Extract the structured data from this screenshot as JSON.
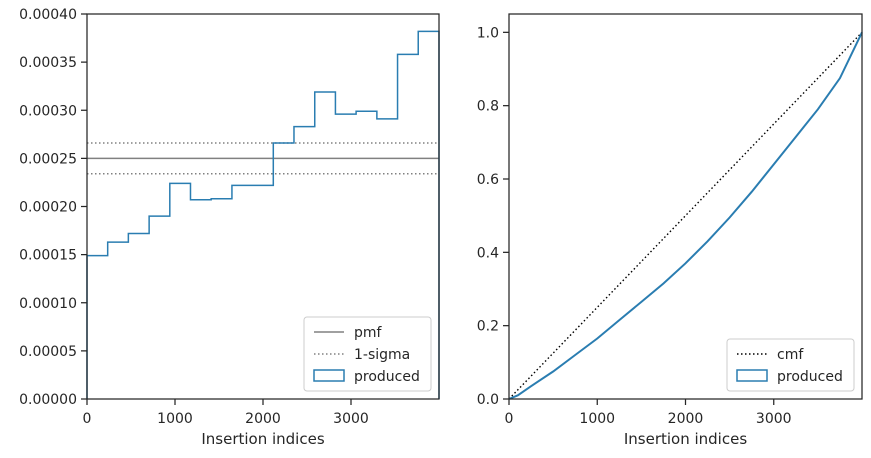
{
  "chart_data": [
    {
      "type": "histogram",
      "xlabel": "Insertion indices",
      "ylabel": "",
      "xlim": [
        0,
        4000
      ],
      "ylim": [
        0,
        0.0004
      ],
      "xticks": [
        0,
        1000,
        2000,
        3000
      ],
      "xtick_labels": [
        "0",
        "1000",
        "2000",
        "3000"
      ],
      "yticks": [
        0,
        5e-05,
        0.0001,
        0.00015,
        0.0002,
        0.00025,
        0.0003,
        0.00035,
        0.0004
      ],
      "ytick_labels": [
        "0.00000",
        "0.00005",
        "0.00010",
        "0.00015",
        "0.00020",
        "0.00025",
        "0.00030",
        "0.00035",
        "0.00040"
      ],
      "grid": false,
      "legend_position": "lower-right",
      "hlines": [
        {
          "name": "pmf",
          "y": 0.00025,
          "style": "solid",
          "color": "#808080"
        },
        {
          "name": "1-sigma",
          "y": 0.000266,
          "style": "dotted",
          "color": "#808080"
        },
        {
          "name": "1-sigma",
          "y": 0.000234,
          "style": "dotted",
          "color": "#808080"
        }
      ],
      "series": [
        {
          "name": "produced",
          "color": "#2a7db1",
          "bin_edges": [
            0,
            235,
            470,
            706,
            941,
            1176,
            1411,
            1647,
            1882,
            2117,
            2352,
            2588,
            2823,
            3058,
            3294,
            3529,
            3764,
            4000
          ],
          "values": [
            0.000149,
            0.000163,
            0.000172,
            0.00019,
            0.000224,
            0.000207,
            0.000208,
            0.000222,
            0.000222,
            0.000266,
            0.000283,
            0.000319,
            0.000296,
            0.000299,
            0.000291,
            0.000358,
            0.000382
          ]
        }
      ],
      "legend": [
        {
          "label": "pmf",
          "kind": "line-solid",
          "color": "#808080"
        },
        {
          "label": "1-sigma",
          "kind": "line-dotted",
          "color": "#808080"
        },
        {
          "label": "produced",
          "kind": "patch",
          "color": "#2a7db1"
        }
      ]
    },
    {
      "type": "line",
      "xlabel": "Insertion indices",
      "ylabel": "",
      "xlim": [
        0,
        4000
      ],
      "ylim": [
        0,
        1.05
      ],
      "xticks": [
        0,
        1000,
        2000,
        3000
      ],
      "xtick_labels": [
        "0",
        "1000",
        "2000",
        "3000"
      ],
      "yticks": [
        0,
        0.2,
        0.4,
        0.6,
        0.8,
        1.0
      ],
      "ytick_labels": [
        "0.0",
        "0.2",
        "0.4",
        "0.6",
        "0.8",
        "1.0"
      ],
      "grid": false,
      "legend_position": "lower-right",
      "series": [
        {
          "name": "cmf",
          "style": "dotted",
          "color": "#000000",
          "x": [
            0,
            4000
          ],
          "y": [
            0,
            1.0
          ]
        },
        {
          "name": "produced",
          "style": "step",
          "color": "#2a7db1",
          "x": [
            0,
            100,
            250,
            500,
            750,
            1000,
            1250,
            1500,
            1750,
            2000,
            2250,
            2500,
            2750,
            3000,
            3250,
            3500,
            3750,
            4000
          ],
          "y": [
            0,
            0.01,
            0.035,
            0.075,
            0.12,
            0.165,
            0.215,
            0.265,
            0.315,
            0.37,
            0.43,
            0.495,
            0.565,
            0.64,
            0.715,
            0.79,
            0.875,
            1.0
          ]
        }
      ],
      "legend": [
        {
          "label": "cmf",
          "kind": "line-dotted",
          "color": "#000000"
        },
        {
          "label": "produced",
          "kind": "patch",
          "color": "#2a7db1"
        }
      ]
    }
  ]
}
